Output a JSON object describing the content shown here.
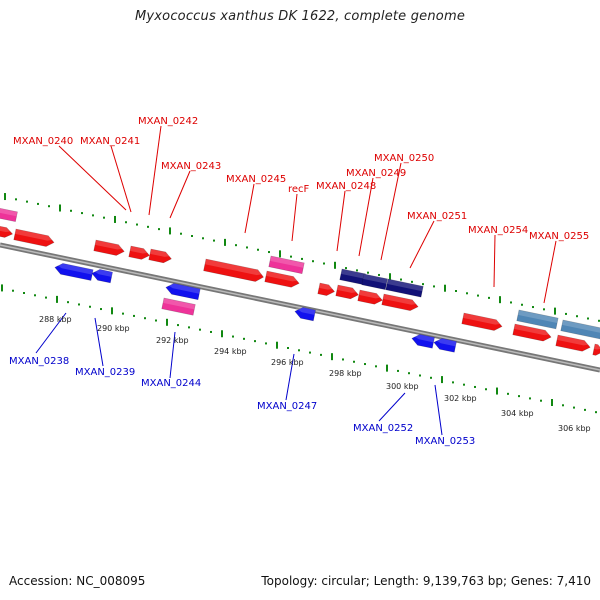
{
  "title": "Myxococcus xanthus DK 1622, complete genome",
  "accession": "Accession: NC_008095",
  "summary": "Topology: circular; Length: 9,139,763 bp; Genes: 7,410",
  "colors": {
    "forward_gene": "#ee1111",
    "reverse_gene": "#1111ee",
    "rna": "#ee3399",
    "dark_gene": "#111177",
    "steel_gene": "#4f86b5",
    "tick": "#118811",
    "backbone": "#777777",
    "top_label": "#dd0000",
    "bottom_label": "#0000cc"
  },
  "top_labels": [
    {
      "text": "MXAN_0240"
    },
    {
      "text": "MXAN_0241"
    },
    {
      "text": "MXAN_0242"
    },
    {
      "text": "MXAN_0243"
    },
    {
      "text": "MXAN_0245"
    },
    {
      "text": "recF"
    },
    {
      "text": "MXAN_0248"
    },
    {
      "text": "MXAN_0249"
    },
    {
      "text": "MXAN_0250"
    },
    {
      "text": "MXAN_0251"
    },
    {
      "text": "MXAN_0254"
    },
    {
      "text": "MXAN_0255"
    }
  ],
  "bottom_labels": [
    {
      "text": "MXAN_0238"
    },
    {
      "text": "MXAN_0239"
    },
    {
      "text": "MXAN_0244"
    },
    {
      "text": "MXAN_0247"
    },
    {
      "text": "MXAN_0252"
    },
    {
      "text": "MXAN_0253"
    }
  ],
  "scale_labels": [
    "288 kbp",
    "290 kbp",
    "292 kbp",
    "294 kbp",
    "296 kbp",
    "298 kbp",
    "300 kbp",
    "302 kbp",
    "304 kbp",
    "306 kbp"
  ]
}
